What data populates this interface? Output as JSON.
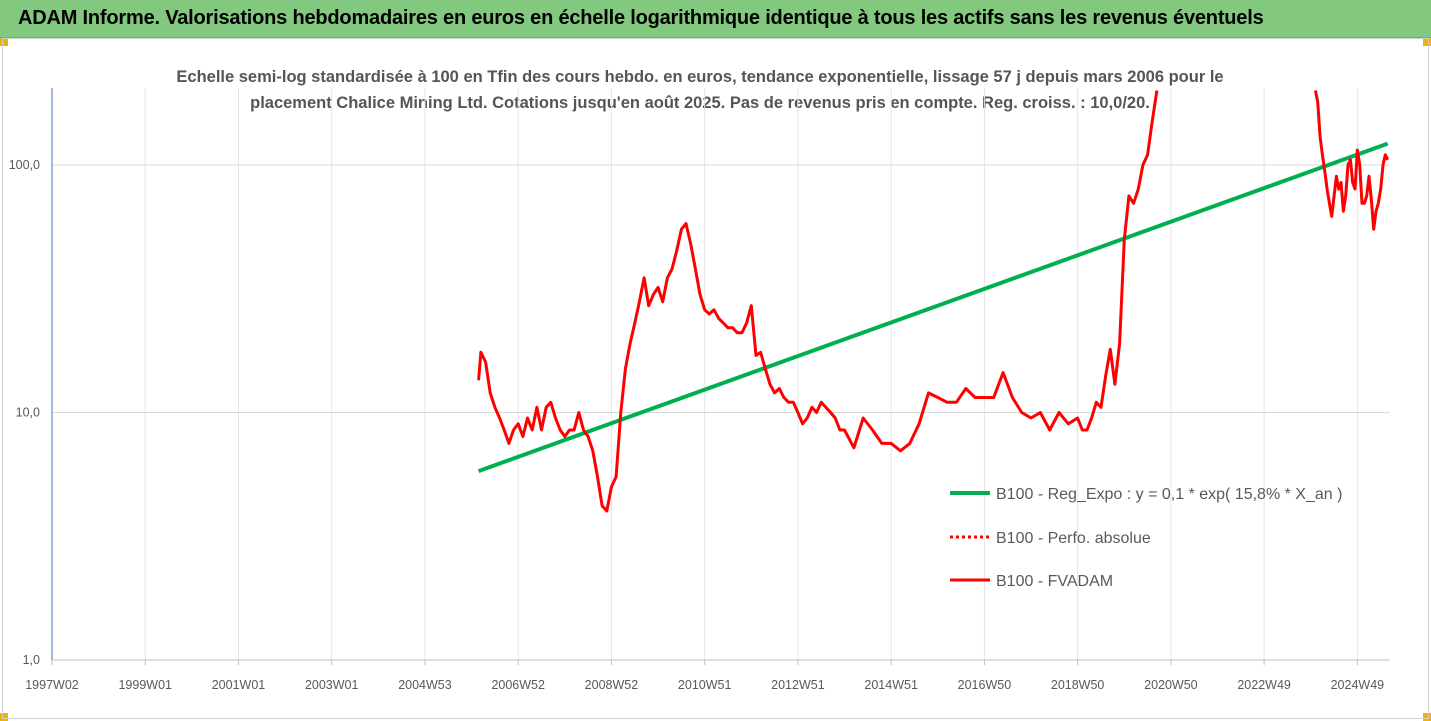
{
  "header": {
    "title": "ADAM Informe. Valorisations hebdomadaires en euros en échelle logarithmique identique à tous les actifs sans les revenus éventuels"
  },
  "colors": {
    "header_bg": "#82c97f",
    "regression": "#00b050",
    "series": "#ff0000",
    "accent": "#f0b400"
  },
  "chart_data": {
    "type": "line",
    "title": "Echelle semi-log standardisée à 100 en Tfin des cours hebdo. en euros, tendance exponentielle, lissage 57 j depuis mars 2006 pour le placement Chalice Mining Ltd. Cotations jusqu'en août 2025. Pas de revenus pris en compte. Reg. croiss. : 10,0/20.",
    "title_lines": [
      "Echelle semi-log standardisée à 100 en Tfin des cours hebdo. en euros, tendance exponentielle, lissage 57 j depuis mars 2006 pour le",
      "placement Chalice Mining Ltd. Cotations jusqu'en août 2025. Pas de revenus pris en compte. Reg. croiss. : 10,0/20."
    ],
    "y_scale": "log",
    "ylim": [
      1,
      200
    ],
    "y_ticks": [
      {
        "value": 1,
        "label": "1,0"
      },
      {
        "value": 10,
        "label": "10,0"
      },
      {
        "value": 100,
        "label": "100,0"
      }
    ],
    "xlim": [
      1997.0,
      2025.7
    ],
    "x_ticks": [
      {
        "value": 1997.0,
        "label": "1997W02"
      },
      {
        "value": 1999.0,
        "label": "1999W01"
      },
      {
        "value": 2001.0,
        "label": "2001W01"
      },
      {
        "value": 2003.0,
        "label": "2003W01"
      },
      {
        "value": 2005.0,
        "label": "2004W53"
      },
      {
        "value": 2007.0,
        "label": "2006W52"
      },
      {
        "value": 2009.0,
        "label": "2008W52"
      },
      {
        "value": 2011.0,
        "label": "2010W51"
      },
      {
        "value": 2013.0,
        "label": "2012W51"
      },
      {
        "value": 2015.0,
        "label": "2014W51"
      },
      {
        "value": 2017.0,
        "label": "2016W50"
      },
      {
        "value": 2019.0,
        "label": "2018W50"
      },
      {
        "value": 2021.0,
        "label": "2020W50"
      },
      {
        "value": 2023.0,
        "label": "2022W49"
      },
      {
        "value": 2025.0,
        "label": "2024W49"
      }
    ],
    "grid": "vertical",
    "legend_position": "right",
    "series": [
      {
        "name": "B100 - Reg_Expo : y = 0,1 * exp( 15,8% * X_an )",
        "color": "#00b050",
        "style": "solid",
        "x": [
          2006.15,
          2025.65
        ],
        "y": [
          5.8,
          122
        ]
      },
      {
        "name": "B100 - Perfo. absolue",
        "color": "#ff0000",
        "style": "dotted",
        "x": [],
        "y": []
      },
      {
        "name": "B100 - FVADAM",
        "color": "#ff0000",
        "style": "solid",
        "x": [
          2006.15,
          2006.2,
          2006.3,
          2006.4,
          2006.5,
          2006.6,
          2006.7,
          2006.8,
          2006.9,
          2007.0,
          2007.1,
          2007.2,
          2007.3,
          2007.4,
          2007.5,
          2007.6,
          2007.7,
          2007.8,
          2007.9,
          2008.0,
          2008.1,
          2008.2,
          2008.3,
          2008.4,
          2008.5,
          2008.6,
          2008.7,
          2008.8,
          2008.9,
          2009.0,
          2009.1,
          2009.2,
          2009.3,
          2009.4,
          2009.5,
          2009.6,
          2009.7,
          2009.8,
          2009.9,
          2010.0,
          2010.1,
          2010.2,
          2010.3,
          2010.4,
          2010.5,
          2010.6,
          2010.7,
          2010.8,
          2010.9,
          2011.0,
          2011.1,
          2011.2,
          2011.3,
          2011.4,
          2011.5,
          2011.6,
          2011.7,
          2011.8,
          2011.9,
          2012.0,
          2012.1,
          2012.2,
          2012.3,
          2012.4,
          2012.5,
          2012.6,
          2012.7,
          2012.8,
          2012.9,
          2013.0,
          2013.1,
          2013.2,
          2013.3,
          2013.4,
          2013.5,
          2013.6,
          2013.7,
          2013.8,
          2013.9,
          2014.0,
          2014.2,
          2014.4,
          2014.6,
          2014.8,
          2015.0,
          2015.2,
          2015.4,
          2015.6,
          2015.8,
          2016.0,
          2016.2,
          2016.4,
          2016.6,
          2016.8,
          2017.0,
          2017.2,
          2017.4,
          2017.6,
          2017.8,
          2018.0,
          2018.2,
          2018.4,
          2018.6,
          2018.8,
          2019.0,
          2019.1,
          2019.2,
          2019.3,
          2019.4,
          2019.5,
          2019.6,
          2019.7,
          2019.8,
          2019.9,
          2020.0,
          2020.1,
          2020.2,
          2020.3,
          2020.4,
          2020.5,
          2020.6,
          2020.7
        ],
        "y": [
          13.5,
          17.5,
          16,
          12,
          10.5,
          9.5,
          8.5,
          7.5,
          8.5,
          9,
          8,
          9.5,
          8.5,
          10.5,
          8.5,
          10.5,
          11,
          9.5,
          8.5,
          8,
          8.5,
          8.5,
          10,
          8.5,
          8,
          7,
          5.5,
          4.2,
          4.0,
          5,
          5.5,
          10,
          15,
          19,
          23,
          28,
          35,
          27,
          30,
          32,
          28,
          35,
          38,
          45,
          55,
          58,
          48,
          38,
          30,
          26,
          25,
          26,
          24,
          23,
          22,
          22,
          21,
          21,
          23,
          27,
          17,
          17.5,
          15,
          13,
          12,
          12.5,
          11.5,
          11,
          11,
          10,
          9,
          9.5,
          10.5,
          10,
          11,
          10.5,
          10,
          9.5,
          8.5,
          8.5,
          7.2,
          9.5,
          8.5,
          7.5,
          7.5,
          7,
          7.5,
          9,
          12,
          11.5,
          11,
          11,
          12.5,
          11.5,
          11.5,
          11.5,
          14.5,
          11.5,
          10,
          9.5,
          10,
          8.5,
          10,
          9,
          9.5,
          8.5,
          8.5,
          9.5,
          11,
          10.5,
          14,
          18,
          13,
          19,
          50,
          75,
          70,
          80,
          100,
          110,
          150,
          200
        ]
      },
      {
        "name": "",
        "color": "#ff0000",
        "style": "solid",
        "x": [
          2024.1,
          2024.15,
          2024.2,
          2024.25,
          2024.3,
          2024.35,
          2024.4,
          2024.45,
          2024.5,
          2024.55,
          2024.6,
          2024.65,
          2024.7,
          2024.75,
          2024.8,
          2024.85,
          2024.9,
          2024.95,
          2025.0,
          2025.05,
          2025.1,
          2025.15,
          2025.2,
          2025.25,
          2025.3,
          2025.35,
          2025.4,
          2025.45,
          2025.5,
          2025.55,
          2025.6,
          2025.65
        ],
        "y": [
          200,
          180,
          130,
          110,
          95,
          80,
          70,
          62,
          75,
          90,
          80,
          85,
          65,
          75,
          100,
          105,
          85,
          80,
          115,
          100,
          70,
          70,
          75,
          90,
          72,
          55,
          65,
          70,
          80,
          100,
          110,
          105
        ]
      }
    ]
  }
}
